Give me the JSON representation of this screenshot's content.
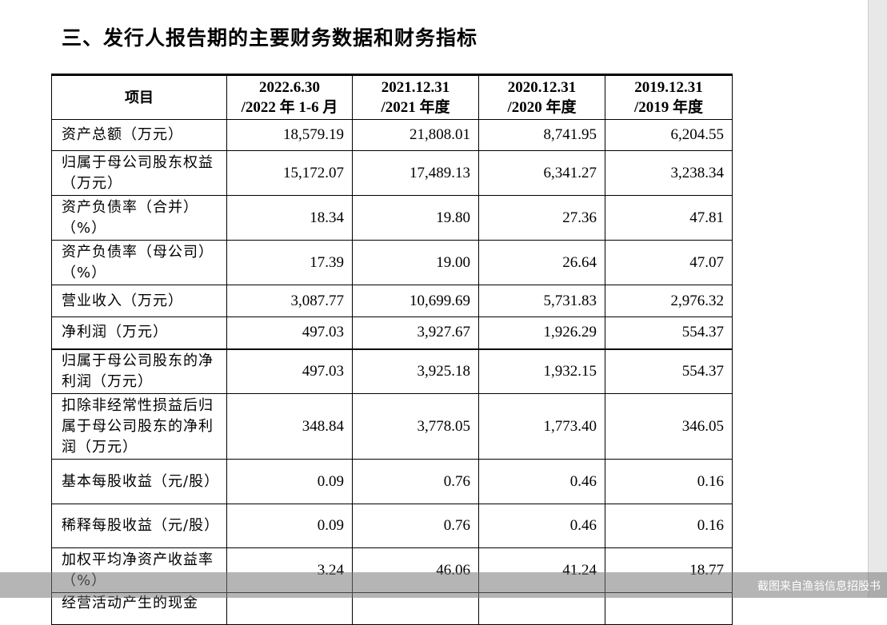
{
  "title": "三、发行人报告期的主要财务数据和财务指标",
  "table": {
    "headers": [
      {
        "line1": "项目",
        "line2": ""
      },
      {
        "line1": "2022.6.30",
        "line2": "/2022 年 1-6 月"
      },
      {
        "line1": "2021.12.31",
        "line2": "/2021 年度"
      },
      {
        "line1": "2020.12.31",
        "line2": "/2020 年度"
      },
      {
        "line1": "2019.12.31",
        "line2": "/2019 年度"
      }
    ],
    "rows": [
      {
        "label": "资产总额（万元）",
        "values": [
          "18,579.19",
          "21,808.01",
          "8,741.95",
          "6,204.55"
        ]
      },
      {
        "label": "归属于母公司股东权益（万元）",
        "values": [
          "15,172.07",
          "17,489.13",
          "6,341.27",
          "3,238.34"
        ]
      },
      {
        "label": "资产负债率（合并）（%）",
        "values": [
          "18.34",
          "19.80",
          "27.36",
          "47.81"
        ]
      },
      {
        "label": "资产负债率（母公司）（%）",
        "values": [
          "17.39",
          "19.00",
          "26.64",
          "47.07"
        ]
      },
      {
        "label": "营业收入（万元）",
        "values": [
          "3,087.77",
          "10,699.69",
          "5,731.83",
          "2,976.32"
        ]
      },
      {
        "label": "净利润（万元）",
        "values": [
          "497.03",
          "3,927.67",
          "1,926.29",
          "554.37"
        ]
      },
      {
        "label": "归属于母公司股东的净利润（万元）",
        "values": [
          "497.03",
          "3,925.18",
          "1,932.15",
          "554.37"
        ]
      },
      {
        "label": "扣除非经常性损益后归属于母公司股东的净利润（万元）",
        "values": [
          "348.84",
          "3,778.05",
          "1,773.40",
          "346.05"
        ]
      },
      {
        "label": "基本每股收益（元/股）",
        "values": [
          "0.09",
          "0.76",
          "0.46",
          "0.16"
        ]
      },
      {
        "label": "稀释每股收益（元/股）",
        "values": [
          "0.09",
          "0.76",
          "0.46",
          "0.16"
        ]
      },
      {
        "label": "加权平均净资产收益率（%）",
        "values": [
          "3.24",
          "46.06",
          "41.24",
          "18.77"
        ]
      },
      {
        "label": "经营活动产生的现金",
        "values": [
          "",
          "",
          "",
          ""
        ]
      }
    ]
  },
  "watermark": "截图来自渔翁信息招股书"
}
